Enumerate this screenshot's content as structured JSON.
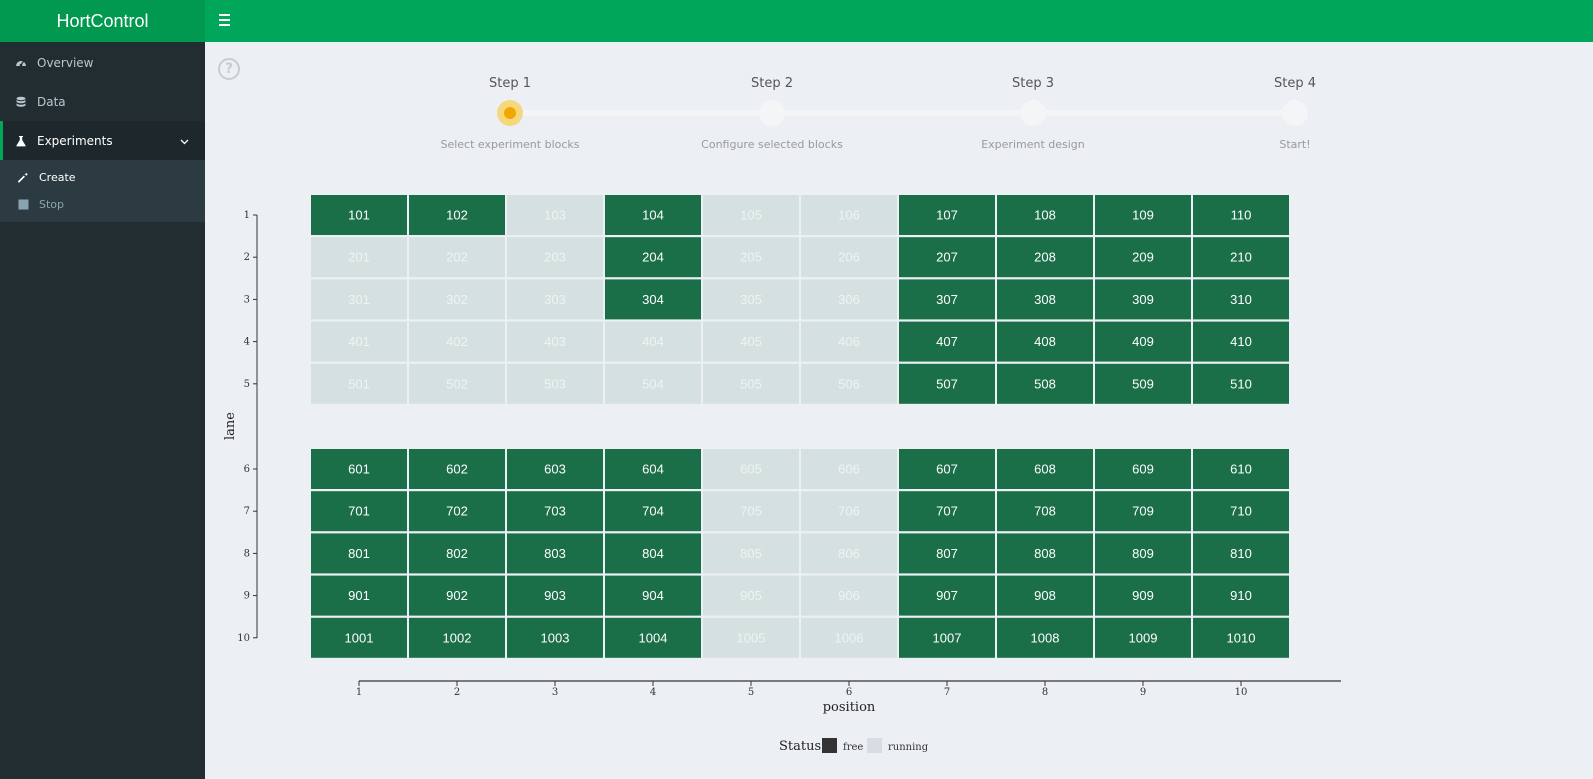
{
  "app": {
    "title": "HortControl"
  },
  "sidebar": {
    "items": [
      {
        "label": "Overview",
        "icon": "dashboard-icon"
      },
      {
        "label": "Data",
        "icon": "database-icon"
      },
      {
        "label": "Experiments",
        "icon": "flask-icon"
      }
    ],
    "submenu": [
      {
        "label": "Create",
        "icon": "magic-wand-icon"
      },
      {
        "label": "Stop",
        "icon": "stop-icon"
      }
    ]
  },
  "help": {
    "glyph": "?"
  },
  "stepper": {
    "steps": [
      {
        "title": "Step 1",
        "desc": "Select experiment blocks"
      },
      {
        "title": "Step 2",
        "desc": "Configure selected blocks"
      },
      {
        "title": "Step 3",
        "desc": "Experiment design"
      },
      {
        "title": "Step 4",
        "desc": "Start!"
      }
    ],
    "active": 1
  },
  "colors": {
    "free": "#1a6e48",
    "running": "#d5e1e1",
    "accent": "#00a65a",
    "step_active": "#f0a800"
  },
  "chart_data": {
    "type": "heatmap",
    "xlabel": "position",
    "ylabel": "lane",
    "x_ticks": [
      1,
      2,
      3,
      4,
      5,
      6,
      7,
      8,
      9,
      10
    ],
    "y_ticks": [
      1,
      2,
      3,
      4,
      5,
      6,
      7,
      8,
      9,
      10
    ],
    "legend": {
      "title": "Status",
      "entries": [
        "free",
        "running"
      ],
      "position": "bottom"
    },
    "running": [
      103,
      105,
      106,
      201,
      202,
      203,
      205,
      206,
      301,
      302,
      303,
      305,
      306,
      401,
      402,
      403,
      404,
      405,
      406,
      501,
      502,
      503,
      504,
      505,
      506,
      605,
      606,
      705,
      706,
      805,
      806,
      905,
      906,
      1005,
      1006
    ]
  }
}
